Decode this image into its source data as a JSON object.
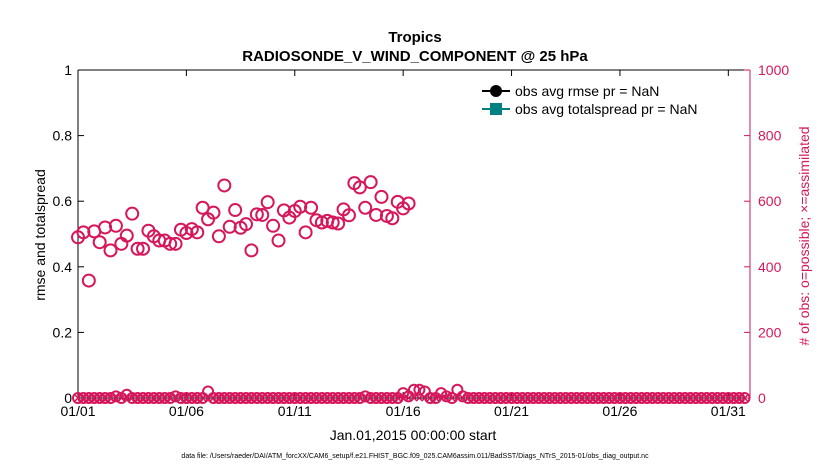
{
  "chart_data": {
    "type": "scatter",
    "title": "Tropics",
    "subtitle": "RADIOSONDE_V_WIND_COMPONENT @ 25 hPa",
    "xlabel": "Jan.01,2015 00:00:00 start",
    "ylabel_left": "rmse and totalspread",
    "ylabel_right": "# of obs: o=possible; ×=assimilated",
    "x_ticks": [
      {
        "label": "01/01",
        "day": 1
      },
      {
        "label": "01/06",
        "day": 6
      },
      {
        "label": "01/11",
        "day": 11
      },
      {
        "label": "01/16",
        "day": 16
      },
      {
        "label": "01/21",
        "day": 21
      },
      {
        "label": "01/26",
        "day": 26
      },
      {
        "label": "01/31",
        "day": 31
      }
    ],
    "xlim": [
      1.0,
      32.0
    ],
    "ylim_left": [
      0,
      1
    ],
    "ylim_right": [
      0,
      1000
    ],
    "y_ticks_left": [
      "0",
      "0.2",
      "0.4",
      "0.6",
      "0.8",
      "1"
    ],
    "y_ticks_left_values": [
      0,
      0.2,
      0.4,
      0.6,
      0.8,
      1
    ],
    "y_ticks_right": [
      "0",
      "200",
      "400",
      "600",
      "800",
      "1000"
    ],
    "y_ticks_right_values": [
      0,
      200,
      400,
      600,
      800,
      1000
    ],
    "legend": [
      {
        "label": "obs avg rmse pr = NaN",
        "color": "#000000",
        "marker": "circle"
      },
      {
        "label": "obs avg totalspread pr = NaN",
        "color": "#008080",
        "marker": "square"
      }
    ],
    "legend_position": "top-right",
    "series": [
      {
        "name": "possible (upper)",
        "axis": "right",
        "color": "#d6175b",
        "marker": "circle",
        "x": [
          1.0,
          1.25,
          1.5,
          1.75,
          2.0,
          2.25,
          2.5,
          2.75,
          3.0,
          3.25,
          3.5,
          3.75,
          4.0,
          4.25,
          4.5,
          4.75,
          5.0,
          5.25,
          5.5,
          5.75,
          6.0,
          6.25,
          6.5,
          6.75,
          7.0,
          7.25,
          7.5,
          7.75,
          8.0,
          8.25,
          8.5,
          8.75,
          9.0,
          9.25,
          9.5,
          9.75,
          10.0,
          10.25,
          10.5,
          10.75,
          11.0,
          11.25,
          11.5,
          11.75,
          12.0,
          12.25,
          12.5,
          12.75,
          13.0,
          13.25,
          13.5,
          13.75,
          14.0,
          14.25,
          14.5,
          14.75,
          15.0,
          15.25,
          15.5,
          15.75,
          16.0,
          16.25,
          16.5,
          16.75,
          17.0,
          17.25,
          17.5,
          17.75,
          18.0,
          18.25,
          18.5,
          18.75,
          19.0,
          19.25,
          19.5,
          19.75,
          20.0,
          20.25,
          20.5,
          20.75,
          21.0,
          21.25,
          21.5,
          21.75,
          22.0,
          22.25,
          22.5,
          22.75,
          23.0,
          23.25,
          23.5,
          23.75,
          24.0,
          24.25,
          24.5,
          24.75,
          25.0,
          25.25,
          25.5,
          25.75,
          26.0,
          26.25,
          26.5,
          26.75,
          27.0,
          27.25,
          27.5,
          27.75,
          28.0,
          28.25,
          28.5,
          28.75,
          29.0,
          29.25,
          29.5,
          29.75,
          30.0,
          30.25,
          30.5,
          30.75,
          31.0,
          31.25,
          31.5
        ],
        "y": [
          490,
          505,
          358,
          508,
          475,
          520,
          450,
          525,
          470,
          495,
          562,
          455,
          455,
          510,
          493,
          480,
          480,
          470,
          470,
          513,
          503,
          515,
          505,
          580,
          545,
          565,
          493,
          648,
          522,
          573,
          519,
          530,
          450,
          560,
          558,
          597,
          525,
          480,
          572,
          550,
          570,
          583,
          505,
          580,
          542,
          535,
          540,
          535,
          532,
          575,
          557,
          655,
          642,
          580,
          658,
          558,
          613,
          555,
          548,
          598,
          578,
          593,
          0,
          0,
          0,
          0,
          0,
          0,
          0,
          0,
          0,
          0,
          0,
          0,
          0,
          0,
          0,
          0,
          0,
          0,
          0,
          0,
          0,
          0,
          0,
          0,
          0,
          0,
          0,
          0,
          0,
          0,
          0,
          0,
          0,
          0,
          0,
          0,
          0,
          0,
          0,
          0,
          0,
          0,
          0,
          0,
          0,
          0,
          0,
          0,
          0,
          0,
          0,
          0,
          0,
          0,
          0,
          0,
          0,
          0,
          0,
          0,
          0
        ],
        "count": 62
      },
      {
        "name": "possible (baseline)",
        "axis": "right",
        "color": "#d6175b",
        "marker": "circle",
        "values_note": "near-zero counts sampled every 0.25 day",
        "x": [
          1.0,
          1.25,
          1.5,
          1.75,
          2.0,
          2.25,
          2.5,
          2.75,
          3.0,
          3.25,
          3.5,
          3.75,
          4.0,
          4.25,
          4.5,
          4.75,
          5.0,
          5.25,
          5.5,
          5.75,
          6.0,
          6.25,
          6.5,
          6.75,
          7.0,
          7.25,
          7.5,
          7.75,
          8.0,
          8.25,
          8.5,
          8.75,
          9.0,
          9.25,
          9.5,
          9.75,
          10.0,
          10.25,
          10.5,
          10.75,
          11.0,
          11.25,
          11.5,
          11.75,
          12.0,
          12.25,
          12.5,
          12.75,
          13.0,
          13.25,
          13.5,
          13.75,
          14.0,
          14.25,
          14.5,
          14.75,
          15.0,
          15.25,
          15.5,
          15.75,
          16.0,
          16.25,
          16.5,
          16.75,
          17.0,
          17.25,
          17.5,
          17.75,
          18.0,
          18.25,
          18.5,
          18.75,
          19.0,
          19.25,
          19.5,
          19.75,
          20.0,
          20.25,
          20.5,
          20.75,
          21.0,
          21.25,
          21.5,
          21.75,
          22.0,
          22.25,
          22.5,
          22.75,
          23.0,
          23.25,
          23.5,
          23.75,
          24.0,
          24.25,
          24.5,
          24.75,
          25.0,
          25.25,
          25.5,
          25.75,
          26.0,
          26.25,
          26.5,
          26.75,
          27.0,
          27.25,
          27.5,
          27.75,
          28.0,
          28.25,
          28.5,
          28.75,
          29.0,
          29.25,
          29.5,
          29.75,
          30.0,
          30.25,
          30.5,
          30.75,
          31.0,
          31.25,
          31.5,
          31.75
        ],
        "y": [
          0,
          0,
          0,
          0,
          0,
          0,
          0,
          5,
          0,
          10,
          0,
          0,
          0,
          0,
          0,
          0,
          0,
          0,
          5,
          0,
          0,
          0,
          0,
          0,
          20,
          0,
          0,
          0,
          0,
          0,
          0,
          0,
          0,
          0,
          0,
          0,
          0,
          0,
          0,
          0,
          0,
          0,
          0,
          0,
          0,
          0,
          0,
          0,
          0,
          0,
          0,
          0,
          0,
          5,
          0,
          0,
          0,
          0,
          0,
          0,
          15,
          5,
          25,
          25,
          20,
          0,
          0,
          15,
          5,
          0,
          25,
          5,
          0,
          0,
          0,
          0,
          0,
          0,
          0,
          0,
          0,
          0,
          0,
          0,
          0,
          0,
          0,
          0,
          0,
          0,
          0,
          0,
          0,
          0,
          0,
          0,
          0,
          0,
          0,
          0,
          0,
          0,
          0,
          0,
          0,
          0,
          0,
          0,
          0,
          0,
          0,
          0,
          0,
          0,
          0,
          0,
          0,
          0,
          0,
          0,
          0,
          0,
          0,
          0
        ]
      },
      {
        "name": "assimilated",
        "axis": "right",
        "color": "#d6175b",
        "marker": "x",
        "constant_value": 0
      }
    ],
    "grid": false
  },
  "footer": {
    "datafile": "data file: /Users/raeder/DAI/ATM_forcXX/CAM6_setup/f.e21.FHIST_BGC.f09_025.CAM6assim.011/BadSST/Diags_NTrS_2015-01/obs_diag_output.nc"
  },
  "colors": {
    "right_axis": "#d6175b",
    "rmse": "#000000",
    "spread": "#008080"
  }
}
